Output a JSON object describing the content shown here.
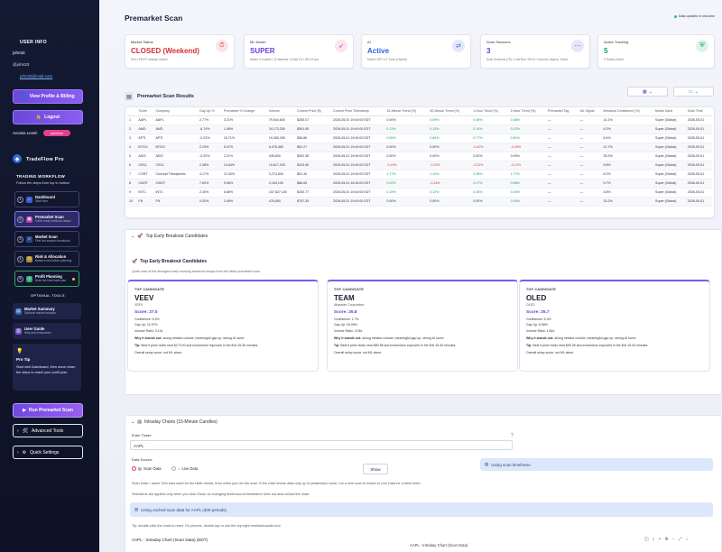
{
  "sidebar": {
    "user_info_title": "USER INFO",
    "username": "john33",
    "handle": "@john33",
    "email": "john33@mail.com",
    "view_profile_label": "View Profile & Billing",
    "logout_label": "Logout",
    "access_level_label": "Access Level:",
    "access_level_value": "premium",
    "brand": "TradeFlow Pro",
    "workflow_title": "TRADING WORKFLOW",
    "workflow_subtitle": "Follow the steps from top to bottom",
    "workflow": [
      {
        "num": "1",
        "title": "Dashboard",
        "desc": "Start here"
      },
      {
        "num": "2",
        "title": "Premarket Scan",
        "desc": "Catch early breakout setups"
      },
      {
        "num": "3",
        "title": "Market Scan",
        "desc": "Find live session breakouts"
      },
      {
        "num": "4",
        "title": "Risk & Allocation",
        "desc": "Balance risk before planning"
      },
      {
        "num": "5",
        "title": "Profit Planning",
        "desc": "Build the final trade plan"
      }
    ],
    "optional_title": "OPTIONAL TOOLS",
    "optional": [
      {
        "title": "Market Summary",
        "desc": "Optional market analysis"
      },
      {
        "title": "User Guide",
        "desc": "Help and instructions"
      }
    ],
    "pro_tip_title": "Pro Tip",
    "pro_tip_text": "Start with Dashboard, then move down the steps to reach your profit plan.",
    "run_scan_label": "Run Premarket Scan",
    "advanced_tools_label": "Advanced Tools",
    "quick_settings_label": "Quick Settings"
  },
  "header": {
    "title": "Premarket Scan",
    "status_text": "Data updates in real-time"
  },
  "metrics": [
    {
      "label": "Market Status",
      "value": "CLOSED (Weekend)",
      "sub": "04:01 PM ET session closed",
      "color": "#d62f3c",
      "icon": "clock-icon",
      "glyph": "⏱",
      "bg": "#fde4e6"
    },
    {
      "label": "ML Model",
      "value": "SUPER",
      "sub": "Model: 3 models • 12 features • 5-fold CV • 88.1% acc",
      "color": "#6b3fd8",
      "icon": "rocket-icon",
      "glyph": "🚀",
      "bg": "#fbe3f1"
    },
    {
      "label": "AI",
      "value": "Active",
      "sub": "Model: GPT-4.1 Turbo (Hybrid)",
      "color": "#3163d9",
      "icon": "swap-icon",
      "glyph": "⇄",
      "bg": "#e3e9fb"
    },
    {
      "label": "Scan Sessions",
      "value": "3",
      "sub": "Scan Sessions (7D) • Last Run: 09:00 • Sources: Alpaca, Yahoo",
      "color": "#6b3fd8",
      "icon": "dots-icon",
      "glyph": "⋯",
      "bg": "#ece3fb"
    },
    {
      "label": "Active Tracking",
      "value": "5",
      "sub": "5 Tickers Active",
      "color": "#14a05a",
      "icon": "shield-icon",
      "glyph": "🛡",
      "bg": "#dff3ea"
    }
  ],
  "results": {
    "title": "Premarket Scan Results",
    "columns": [
      "",
      "Ticker",
      "Company",
      "Gap Up %",
      "Premarket % Change",
      "Volume",
      "Current Price ($)",
      "Current Price Timestamp",
      "15-Minute Trend (%)",
      "30-Minute Trend (%)",
      "1-Hour Trend (%)",
      "2-Hour Trend (%)",
      "Premarket Tag",
      "ML Signal",
      "Breakout Confidence (%)",
      "Model Used",
      "Scan Time"
    ],
    "rows": [
      [
        "1",
        "AAPL",
        "AAPL",
        "2.77%",
        "3.21%",
        "79,544,600",
        "$280.07",
        "2026-05-01 19:40:00 EDT",
        "0.00%",
        "0.09%",
        "0.08%",
        "0.08%",
        "—",
        "—",
        "14.1%",
        "Super (Global)",
        "2026-05-01"
      ],
      [
        "2",
        "AMD",
        "AMD",
        "-8.74%",
        "1.08%",
        "34,173,300",
        "$361.85",
        "2026-05-01 19:40:00 EDT",
        "0.11%",
        "0.13%",
        "0.14%",
        "0.13%",
        "—",
        "—",
        "6.2%",
        "Super (Global)",
        "2026-05-01"
      ],
      [
        "3",
        "APTI",
        "APTI",
        "-0.23%",
        "15.71%",
        "19,360,405",
        "$38.86",
        "2026-05-01 19:40:00 EDT",
        "0.05%",
        "0.64%",
        "0.77%",
        "0.61%",
        "—",
        "—",
        "8.4%",
        "Super (Global)",
        "2026-05-01"
      ],
      [
        "4",
        "BTGO",
        "BTGO",
        "2.23%",
        "5.47%",
        "6,475,460",
        "$52.27",
        "2026-05-01 19:40:00 EDT",
        "0.00%",
        "0.00%",
        "-0.40%",
        "-0.40%",
        "—",
        "—",
        "12.7%",
        "Super (Global)",
        "2026-05-01"
      ],
      [
        "5",
        "AEIS",
        "AEIS",
        "-0.20%",
        "2.21%",
        "435,800",
        "$392.38",
        "2026-05-01 19:40:00 EDT",
        "0.00%",
        "0.00%",
        "0.00%",
        "0.00%",
        "—",
        "—",
        "35.3%",
        "Super (Global)",
        "2026-05-01"
      ],
      [
        "6",
        "CRCL",
        "CRCL",
        "2.08%",
        "10.64%",
        "10,617,200",
        "$103.55",
        "2026-05-01 19:40:00 EDT",
        "-0.49%",
        "-0.23%",
        "-0.22%",
        "-0.12%",
        "—",
        "—",
        "5.8%",
        "Super (Global)",
        "2026-05-01"
      ],
      [
        "7",
        "CORT",
        "Concept Therapeutic",
        "4.17%",
        "12.40%",
        "3,274,800",
        "$51.30",
        "2026-05-01 19:40:00 EDT",
        "1.77%",
        "1.10%",
        "0.36%",
        "1.77%",
        "—",
        "—",
        "6.2%",
        "Super (Global)",
        "2026-05-01"
      ],
      [
        "8",
        "CWST",
        "CWST",
        "7.63%",
        "9.56%",
        "2,163,100",
        "$86.65",
        "2026-05-01 16:30:00 EDT",
        "0.02%",
        "-0.18%",
        "0.17%",
        "0.08%",
        "—",
        "—",
        "5.7%",
        "Super (Global)",
        "2026-05-01"
      ],
      [
        "9",
        "INTC",
        "INTC",
        "2.30%",
        "6.66%",
        "157,627,100",
        "$100.77",
        "2026-05-01 19:40:00 EDT",
        "0.19%",
        "0.13%",
        "0.16%",
        "0.03%",
        "—",
        "—",
        "5.8%",
        "Super (Global)",
        "2026-05-01"
      ],
      [
        "10",
        "FN",
        "FN",
        "0.52%",
        "3.46%",
        "476,800",
        "$757.35",
        "2026-05-01 19:40:00 EDT",
        "0.00%",
        "0.00%",
        "0.00%",
        "0.05%",
        "—",
        "—",
        "33.2%",
        "Super (Global)",
        "2026-05-01"
      ]
    ]
  },
  "breakout": {
    "expander_label": "Top Early Breakout Candidates",
    "title": "Top Early Breakout Candidates",
    "subtitle": "Quick read of the strongest early morning breakout setups from the latest premarket scan.",
    "candidates": [
      {
        "tag": "TOP CANDIDATE",
        "ticker": "VEEV",
        "name": "VEEV",
        "score": "Score: 27.5",
        "confidence": "Confidence: 5.4%",
        "gap": "Gap Up: 11.97%",
        "volume": "Volume Ratio: 3.13x",
        "why": "strong relative volume, meaningful gap up, strong AI score",
        "tip": "Best if price holds near $173.00 and momentum improves in the first 15-30 minutes.",
        "overall": "Overall setup score, not ML alone."
      },
      {
        "tag": "TOP CANDIDATE",
        "ticker": "TEAM",
        "name": "Atlassian Corporation",
        "score": "Score: 26.8",
        "confidence": "Confidence: 1.7%",
        "gap": "Gap Up: 26.09%",
        "volume": "Volume Ratio: 3.06x",
        "why": "strong relative volume, meaningful gap up, strong AI score",
        "tip": "Best if price holds near $80.58 and momentum improves in the first 15-30 minutes.",
        "overall": "Overall setup score, not ML alone."
      },
      {
        "tag": "TOP CANDIDATE",
        "ticker": "OLED",
        "name": "OLED",
        "score": "Score: 25.7",
        "confidence": "Confidence: 6.3%",
        "gap": "Gap Up: 8.38%",
        "volume": "Volume Ratio: 1.84x",
        "why": "strong relative volume, meaningful gap up, strong AI score",
        "tip": "Best if price holds near $93.28 and momentum improves in the first 15-30 minutes.",
        "overall": "Overall setup score, not ML alone."
      }
    ],
    "why_label": "Why it stands out:",
    "tip_label": "Tip:"
  },
  "charts": {
    "expander_label": "Intraday Charts (15-Minute Candles)",
    "ticker_label": "Enter Ticker:",
    "ticker_value": "AAPL",
    "source_label": "Data Source:",
    "source_options": [
      "Scan Data",
      "Live Data"
    ],
    "show_label": "Show",
    "timeframe_info": "Using scan timeframe",
    "note1": "Scan Data = same 15m bars used for the table trends, from when you ran the scan. If the chart shows data only up to yesterday's close, run a new scan to switch to Live Data for a fresh fetch.",
    "note2": "Selections are applied only when you click Show, so changing ticker/source/timeframe does not auto-reload the chart.",
    "cached_info": "Using cached scan data for AAPL (300 periods)",
    "tip_text": "Tip: double-click the chart to reset. On phones, double-tap or use the top-right reset/autoscale tool.",
    "chart_title": "AAPL - Intraday Chart (Scan Data) (EDT)",
    "chart_subtitle": "AAPL - Intraday Chart (Scan Data)"
  }
}
